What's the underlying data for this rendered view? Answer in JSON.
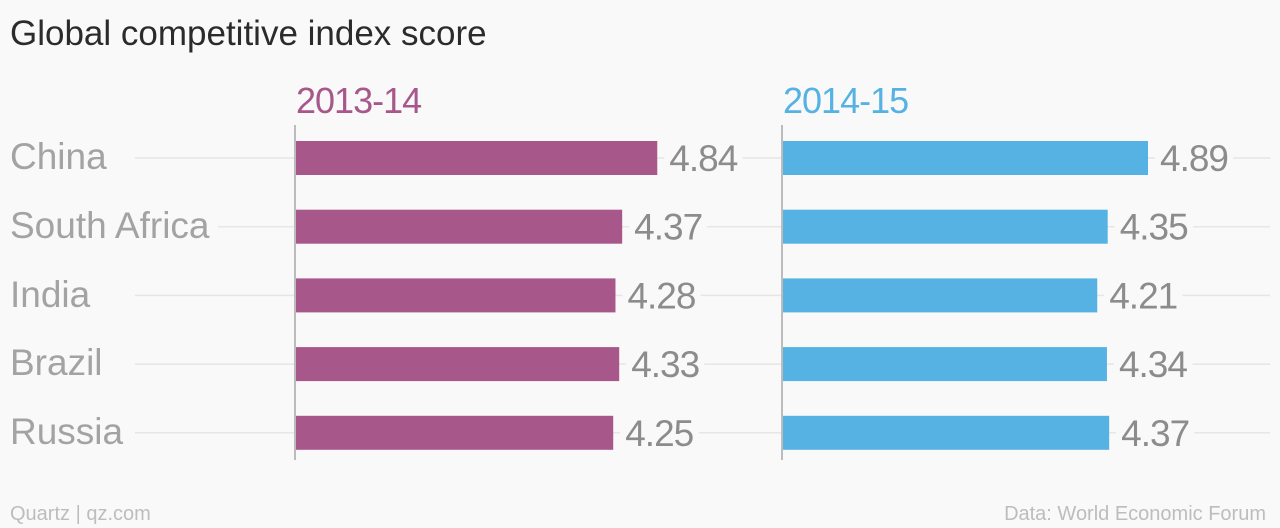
{
  "chart_data": {
    "type": "bar",
    "orientation": "horizontal",
    "title": "Global competitive index score",
    "categories": [
      "China",
      "South Africa",
      "India",
      "Brazil",
      "Russia"
    ],
    "series": [
      {
        "name": "2013-14",
        "values": [
          4.84,
          4.37,
          4.28,
          4.33,
          4.25
        ],
        "color": "#a8578a"
      },
      {
        "name": "2014-15",
        "values": [
          4.89,
          4.35,
          4.21,
          4.34,
          4.37
        ],
        "color": "#55b2e3"
      }
    ],
    "value_labels": [
      [
        "4.84",
        "4.37",
        "4.28",
        "4.33",
        "4.25"
      ],
      [
        "4.89",
        "4.35",
        "4.21",
        "4.34",
        "4.37"
      ]
    ],
    "xlim": [
      0,
      4.89
    ],
    "grid": true,
    "legend": "top"
  },
  "colors": {
    "title": "#2b2b2b",
    "category_label": "#a3a3a3",
    "value_label": "#8c8c8c",
    "gridline": "#e6e6e6",
    "axis": "#bcbcbc",
    "footer": "#bdbdbd",
    "background": "#f9f9f9"
  },
  "footer": {
    "source_left": "Quartz | qz.com",
    "source_right": "Data: World Economic Forum"
  }
}
